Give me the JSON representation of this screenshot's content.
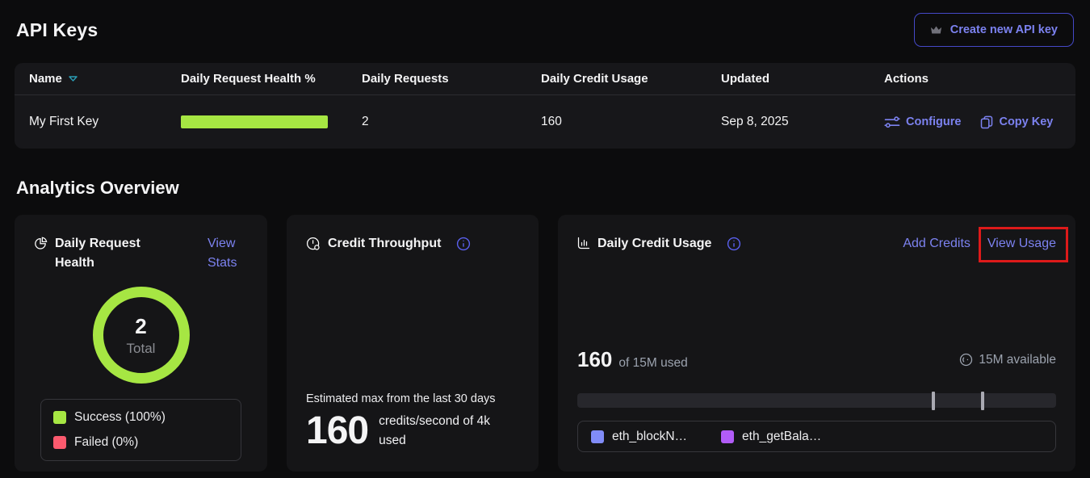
{
  "colors": {
    "lime": "#a6e643",
    "failed-pink": "#fb5a6e",
    "indigo-link": "#7c82f0",
    "legend-indigo": "#818cf8",
    "legend-purple": "#b15cf7",
    "annotation-red": "#dd1a1a",
    "teal-sort": "#2a9db5"
  },
  "api_keys": {
    "title": "API Keys",
    "create_button_label": "Create new API key",
    "table": {
      "columns": {
        "name": "Name",
        "health": "Daily Request Health %",
        "requests": "Daily Requests",
        "credit_usage": "Daily Credit Usage",
        "updated": "Updated",
        "actions": "Actions"
      },
      "row": {
        "name": "My First Key",
        "health_pct": 100,
        "daily_requests": "2",
        "daily_credit_usage": "160",
        "updated": "Sep 8, 2025",
        "configure_label": "Configure",
        "copy_key_label": "Copy Key"
      }
    }
  },
  "analytics": {
    "title": "Analytics Overview",
    "daily_request_health": {
      "title": "Daily Request Health",
      "view_stats_link": "View Stats",
      "total_value": "2",
      "total_label": "Total",
      "legend": [
        {
          "label": "Success (100%)",
          "color": "#a6e643"
        },
        {
          "label": "Failed (0%)",
          "color": "#fb5a6e"
        }
      ]
    },
    "credit_throughput": {
      "title": "Credit Throughput",
      "subtitle": "Estimated max from the last 30 days",
      "value": "160",
      "unit": "credits/second of 4k used"
    },
    "daily_credit_usage": {
      "title": "Daily Credit Usage",
      "add_credits_link": "Add Credits",
      "view_usage_link": "View Usage",
      "used_value": "160",
      "used_suffix": "of 15M used",
      "available_label": "15M available",
      "markers_pct": [
        74.1,
        84.4
      ],
      "legend": [
        {
          "label": "eth_blockN…",
          "color": "#818cf8"
        },
        {
          "label": "eth_getBala…",
          "color": "#b15cf7"
        }
      ]
    }
  },
  "chart_data": [
    {
      "type": "pie",
      "title": "Daily Request Health",
      "categories": [
        "Success",
        "Failed"
      ],
      "values": [
        100,
        0
      ],
      "center_total": 2,
      "legend_position": "below"
    },
    {
      "type": "bar",
      "title": "Daily Credit Usage",
      "used": 160,
      "capacity_label": "15M",
      "available_label": "15M available",
      "marker_positions_pct": [
        74.1,
        84.4
      ],
      "series": [
        {
          "name": "eth_blockN…",
          "color": "#818cf8"
        },
        {
          "name": "eth_getBala…",
          "color": "#b15cf7"
        }
      ]
    }
  ]
}
